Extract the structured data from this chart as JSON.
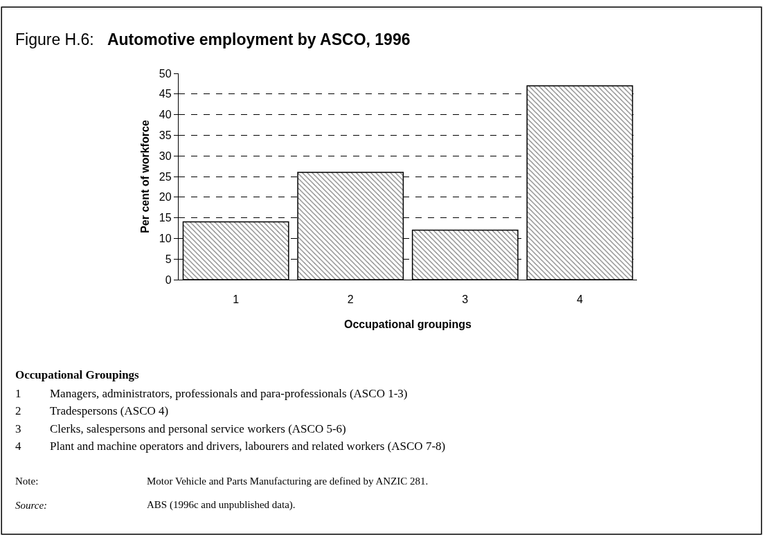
{
  "chart_data": {
    "type": "bar",
    "title": "Figure H.6: Automotive employment by ASCO, 1996",
    "xlabel": "Occupational groupings",
    "ylabel": "Per cent of workforce",
    "categories": [
      "1",
      "2",
      "3",
      "4"
    ],
    "values": [
      14,
      26,
      12,
      47
    ],
    "color": "#000000",
    "ylim": [
      0,
      50
    ],
    "yticks": [
      0,
      5,
      10,
      15,
      20,
      25,
      30,
      35,
      40,
      45,
      50
    ],
    "grid": "y",
    "annotations": [
      "Occupational Groupings",
      "1 Managers, administrators, professionals and para-professionals (ASCO 1-3)",
      "2 Tradespersons (ASCO 4)",
      "3 Clerks, salespersons and personal service workers (ASCO 5-6)",
      "4 Plant and machine operators and drivers, labourers and related workers (ASCO 7-8)",
      "Note: Motor Vehicle and Parts Manufacturing are defined by ANZIC 281.",
      "Source: ABS (1996c and unpublished data)."
    ]
  }
}
